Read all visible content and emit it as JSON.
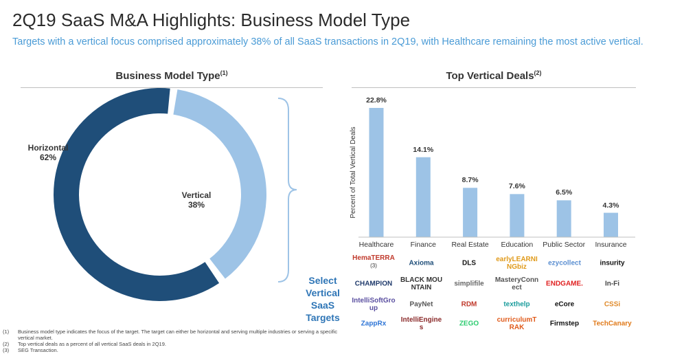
{
  "header": {
    "title": "2Q19 SaaS M&A Highlights: Business Model Type",
    "subtitle": "Targets with a vertical focus comprised approximately 38% of all SaaS transactions in 2Q19, with Healthcare remaining the most active vertical."
  },
  "left": {
    "heading": "Business Model Type",
    "heading_note": "(1)",
    "select_text": "Select Vertical SaaS Targets"
  },
  "right": {
    "heading": "Top Vertical Deals",
    "heading_note": "(2)"
  },
  "chart_data": [
    {
      "type": "pie",
      "title": "Business Model Type",
      "donut": true,
      "categories": [
        "Horizontal",
        "Vertical"
      ],
      "values": [
        62,
        38
      ],
      "labels": [
        "62%",
        "38%"
      ],
      "colors": [
        "#1f4e79",
        "#9dc3e6"
      ]
    },
    {
      "type": "bar",
      "title": "Top Vertical Deals",
      "ylabel": "Percent of Total Vertical Deals",
      "xlabel": "",
      "categories": [
        "Healthcare",
        "Finance",
        "Real Estate",
        "Education",
        "Public Sector",
        "Insurance"
      ],
      "values": [
        22.8,
        14.1,
        8.7,
        7.6,
        6.5,
        4.3
      ],
      "labels": [
        "22.8%",
        "14.1%",
        "8.7%",
        "7.6%",
        "6.5%",
        "4.3%"
      ],
      "ylim": [
        0,
        25
      ],
      "color": "#9dc3e6"
    }
  ],
  "logos": [
    {
      "name": "HemaTERRA",
      "note": "(3)",
      "color": "#c0392b"
    },
    {
      "name": "Axioma",
      "color": "#1f4e79"
    },
    {
      "name": "DLS",
      "color": "#111"
    },
    {
      "name": "earlyLEARNINGbiz",
      "color": "#e09a1a"
    },
    {
      "name": "ezycollect",
      "color": "#5b8fd1"
    },
    {
      "name": "insurity",
      "color": "#111"
    },
    {
      "name": "CHAMPION",
      "color": "#1f3a6b"
    },
    {
      "name": "BLACK MOUNTAIN",
      "color": "#333"
    },
    {
      "name": "simplifile",
      "color": "#666"
    },
    {
      "name": "MasteryConnect",
      "color": "#555"
    },
    {
      "name": "ENDGAME.",
      "color": "#e02020"
    },
    {
      "name": "In-Fi",
      "color": "#444"
    },
    {
      "name": "IntelliSoftGroup",
      "color": "#5a4fa0"
    },
    {
      "name": "PayNet",
      "color": "#555"
    },
    {
      "name": "RDM",
      "color": "#c0392b"
    },
    {
      "name": "texthelp",
      "color": "#1a9c9c"
    },
    {
      "name": "eCore",
      "color": "#111"
    },
    {
      "name": "CSSi",
      "color": "#e08a2a"
    },
    {
      "name": "ZappRx",
      "color": "#2e75d6"
    },
    {
      "name": "IntelliEngines",
      "color": "#8a2a2a"
    },
    {
      "name": "ZEGO",
      "color": "#2ecc71"
    },
    {
      "name": "curriculumTRAK",
      "color": "#e05a1a"
    },
    {
      "name": "Firmstep",
      "color": "#111"
    },
    {
      "name": "TechCanary",
      "color": "#e07a1a"
    }
  ],
  "footnotes": [
    {
      "num": "(1)",
      "text": "Business model type indicates the focus of the target. The target can either be horizontal and serving multiple industries or serving a specific"
    },
    {
      "num": "",
      "text": "vertical market."
    },
    {
      "num": "(2)",
      "text": "Top vertical deals as a percent of all vertical SaaS deals in 2Q19."
    },
    {
      "num": "(3)",
      "text": "SEG Transaction."
    }
  ]
}
